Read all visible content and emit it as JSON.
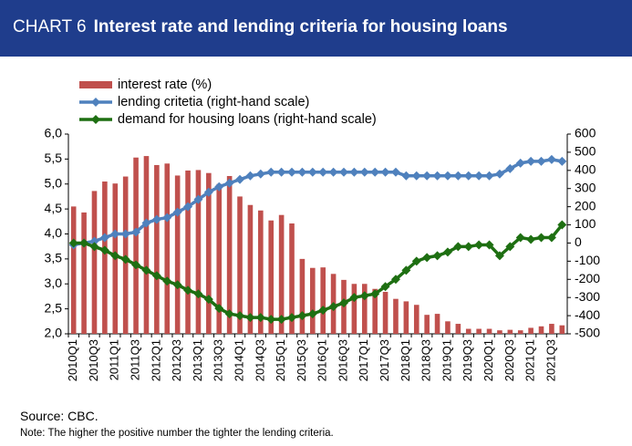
{
  "chart_data": {
    "type": "bar-line",
    "label": "CHART 6",
    "title": "Interest rate and lending criteria for housing loans",
    "source": "Source: CBC.",
    "note": "Note: The higher the positive number the tighter the lending criteria.",
    "categories": [
      "2010Q1",
      null,
      "2010Q3",
      null,
      "2011Q1",
      null,
      "2011Q3",
      null,
      "2012Q1",
      null,
      "2012Q3",
      null,
      "2013Q1",
      null,
      "2013Q3",
      null,
      "2014Q1",
      null,
      "2014Q3",
      null,
      "2015Q1",
      null,
      "2015Q3",
      null,
      "2016Q1",
      null,
      "2016Q3",
      null,
      "2017Q1",
      null,
      "2017Q3",
      null,
      "2018Q1",
      null,
      "2018Q3",
      null,
      "2019Q1",
      null,
      "2019Q3",
      null,
      "2020Q1",
      null,
      "2020Q3",
      null,
      "2021Q1",
      null,
      "2021Q3",
      null
    ],
    "series": [
      {
        "name": "interest rate (%)",
        "kind": "bar",
        "axis": "y",
        "color": "#c0504d",
        "values": [
          4.55,
          4.43,
          4.86,
          5.05,
          5.01,
          5.15,
          5.53,
          5.56,
          5.38,
          5.41,
          5.17,
          5.27,
          5.28,
          5.22,
          5.0,
          5.16,
          4.75,
          4.58,
          4.47,
          4.27,
          4.38,
          4.21,
          3.5,
          3.32,
          3.33,
          3.2,
          3.08,
          3.0,
          3.0,
          2.9,
          2.84,
          2.7,
          2.65,
          2.58,
          2.38,
          2.4,
          2.25,
          2.2,
          2.1,
          2.1,
          2.1,
          2.07,
          2.08,
          2.07,
          2.12,
          2.15,
          2.2,
          2.17
        ]
      },
      {
        "name": "lending critetia (right-hand scale)",
        "kind": "line",
        "axis": "y2",
        "color": "#4f81bd",
        "values": [
          -10,
          0,
          10,
          30,
          50,
          50,
          60,
          110,
          130,
          140,
          170,
          200,
          240,
          280,
          310,
          330,
          350,
          370,
          380,
          390,
          390,
          390,
          390,
          390,
          390,
          390,
          390,
          390,
          390,
          390,
          390,
          390,
          370,
          370,
          370,
          370,
          370,
          370,
          370,
          370,
          370,
          380,
          410,
          440,
          450,
          450,
          460,
          450
        ]
      },
      {
        "name": "demand for housing loans (right-hand scale)",
        "kind": "line",
        "axis": "y2",
        "color": "#1e6f12",
        "values": [
          0,
          0,
          -20,
          -40,
          -70,
          -90,
          -120,
          -150,
          -180,
          -210,
          -230,
          -260,
          -280,
          -310,
          -360,
          -390,
          -400,
          -410,
          -410,
          -420,
          -420,
          -410,
          -400,
          -390,
          -370,
          -350,
          -330,
          -300,
          -290,
          -280,
          -240,
          -200,
          -150,
          -100,
          -80,
          -70,
          -50,
          -20,
          -20,
          -10,
          -10,
          -70,
          -20,
          30,
          20,
          30,
          30,
          100
        ]
      }
    ],
    "ylim": [
      2,
      6
    ],
    "yticks": [
      {
        "value": 2,
        "label": "2,0"
      },
      {
        "value": 2.5,
        "label": "2,5"
      },
      {
        "value": 3,
        "label": "3,0"
      },
      {
        "value": 3.5,
        "label": "3,5"
      },
      {
        "value": 4,
        "label": "4,0"
      },
      {
        "value": 4.5,
        "label": "4,5"
      },
      {
        "value": 5,
        "label": "5,0"
      },
      {
        "value": 5.5,
        "label": "5,5"
      },
      {
        "value": 6,
        "label": "6,0"
      }
    ],
    "y2lim": [
      -500,
      600
    ],
    "y2ticks": [
      -500,
      -400,
      -300,
      -200,
      -100,
      0,
      100,
      200,
      300,
      400,
      500,
      600
    ],
    "legend": "top-left"
  }
}
